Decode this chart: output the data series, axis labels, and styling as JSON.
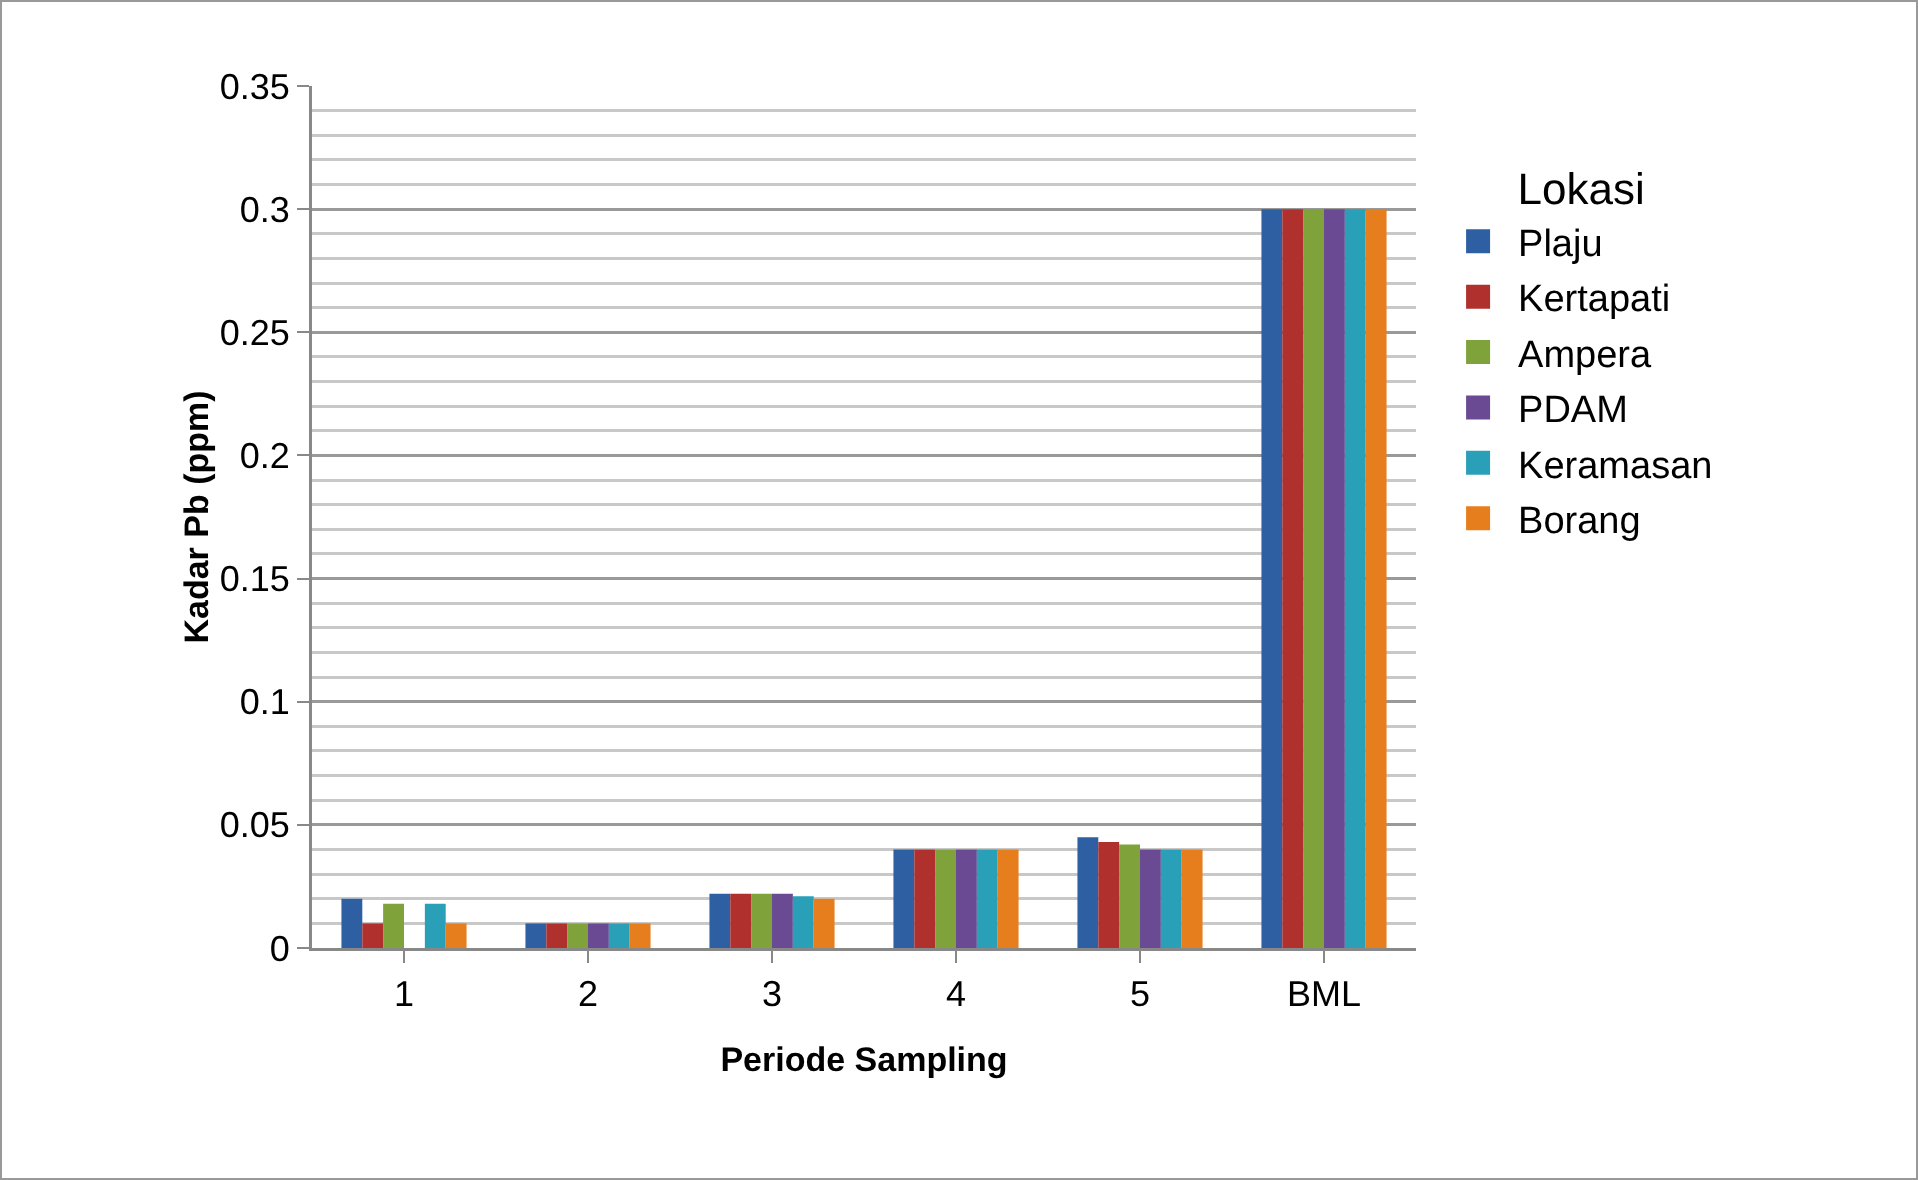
{
  "chart_data": {
    "type": "bar",
    "xlabel": "Periode Sampling",
    "ylabel": "Kadar Pb (ppm)",
    "legend_title": "Lokasi",
    "categories": [
      "1",
      "2",
      "3",
      "4",
      "5",
      "BML"
    ],
    "series": [
      {
        "name": "Plaju",
        "color": "#2e5fa3",
        "values": [
          0.02,
          0.01,
          0.022,
          0.04,
          0.045,
          0.3
        ]
      },
      {
        "name": "Kertapati",
        "color": "#b0302e",
        "values": [
          0.01,
          0.01,
          0.022,
          0.04,
          0.043,
          0.3
        ]
      },
      {
        "name": "Ampera",
        "color": "#7fa33a",
        "values": [
          0.018,
          0.01,
          0.022,
          0.04,
          0.042,
          0.3
        ]
      },
      {
        "name": "PDAM",
        "color": "#6b4a94",
        "values": [
          0,
          0.01,
          0.022,
          0.04,
          0.04,
          0.3
        ]
      },
      {
        "name": "Keramasan",
        "color": "#2a9fb8",
        "values": [
          0.018,
          0.01,
          0.021,
          0.04,
          0.04,
          0.3
        ]
      },
      {
        "name": "Borang",
        "color": "#e67e1e",
        "values": [
          0.01,
          0.01,
          0.02,
          0.04,
          0.04,
          0.3
        ]
      }
    ],
    "ylim": [
      0,
      0.35
    ],
    "yticks": [
      0,
      0.05,
      0.1,
      0.15,
      0.2,
      0.25,
      0.3,
      0.35
    ],
    "grid": true,
    "legend": "right"
  }
}
